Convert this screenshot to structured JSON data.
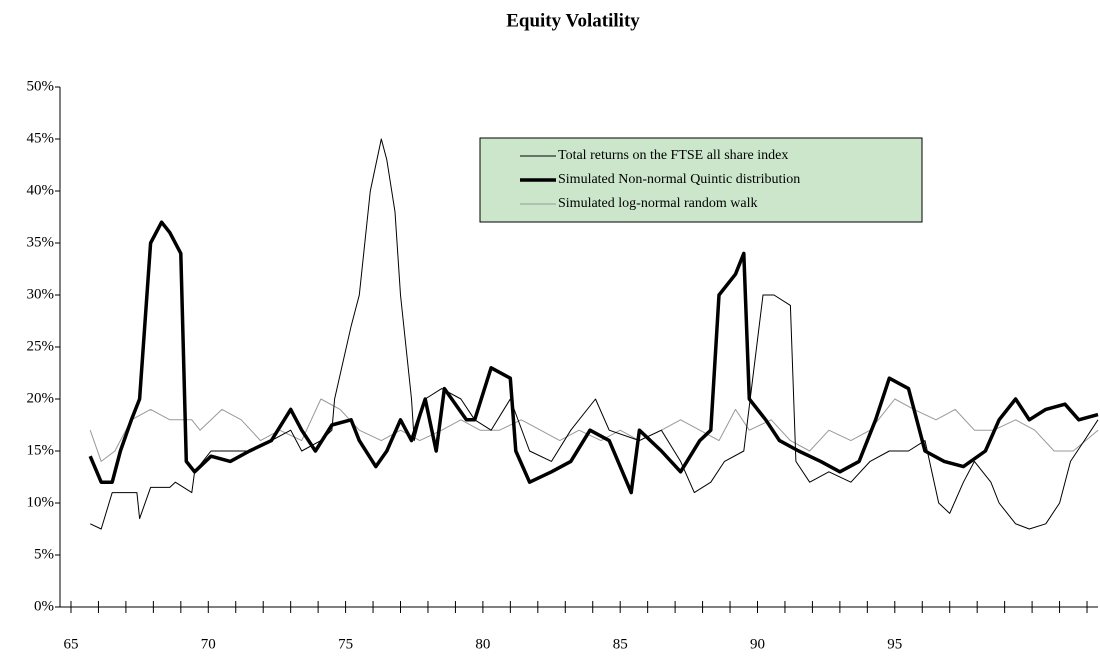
{
  "chart_data": {
    "type": "line",
    "title": "Equity Volatility",
    "xlim": [
      64.6,
      102.4
    ],
    "xticks": [
      65,
      70,
      75,
      80,
      85,
      90,
      95
    ],
    "x_minor_ticks": [
      66,
      67,
      68,
      69,
      71,
      72,
      73,
      74,
      76,
      77,
      78,
      79,
      81,
      82,
      83,
      84,
      86,
      87,
      88,
      89,
      91,
      92,
      93,
      94,
      96,
      97,
      98,
      99,
      100,
      101,
      102
    ],
    "ylim": [
      0,
      50
    ],
    "yticks": [
      {
        "value": 0,
        "label": "0%"
      },
      {
        "value": 5,
        "label": "5%"
      },
      {
        "value": 10,
        "label": "10%"
      },
      {
        "value": 15,
        "label": "15%"
      },
      {
        "value": 20,
        "label": "20%"
      },
      {
        "value": 25,
        "label": "25%"
      },
      {
        "value": 30,
        "label": "30%"
      },
      {
        "value": 35,
        "label": "35%"
      },
      {
        "value": 40,
        "label": "40%"
      },
      {
        "value": 45,
        "label": "45%"
      },
      {
        "value": 50,
        "label": "50%"
      }
    ],
    "legend_position": "top-center",
    "series": [
      {
        "name": "Total returns on the FTSE all share index",
        "color": "#000000",
        "width": 1,
        "x": [
          65.7,
          66.1,
          66.5,
          67.4,
          67.5,
          67.9,
          68.6,
          68.8,
          69.4,
          69.5,
          70.1,
          71.5,
          72.3,
          73.0,
          73.4,
          74.1,
          74.5,
          74.6,
          75.2,
          75.5,
          75.9,
          76.3,
          76.5,
          76.8,
          77.0,
          77.4,
          77.5,
          77.9,
          78.5,
          79.2,
          79.7,
          80.3,
          81.0,
          81.7,
          82.5,
          83.2,
          84.1,
          84.6,
          85.7,
          86.5,
          87.2,
          87.7,
          88.3,
          88.8,
          89.5,
          90.2,
          90.6,
          91.2,
          91.4,
          91.9,
          92.6,
          93.4,
          94.1,
          94.8,
          95.5,
          96.1,
          96.6,
          97.0,
          97.5,
          97.9,
          98.5,
          98.8,
          99.4,
          99.9,
          100.5,
          101.0,
          101.4,
          101.9,
          102.4
        ],
        "values": [
          8,
          7.5,
          11,
          11,
          8.5,
          11.5,
          11.5,
          12,
          11,
          13,
          15,
          15,
          16,
          17,
          15,
          16,
          17,
          20,
          27,
          30,
          40,
          45,
          43,
          38,
          30,
          20,
          16,
          20,
          21,
          20,
          18,
          17,
          20,
          15,
          14,
          17,
          20,
          17,
          16,
          17,
          14,
          11,
          12,
          14,
          15,
          30,
          30,
          29,
          14,
          12,
          13,
          12,
          14,
          15,
          15,
          16,
          10,
          9,
          12,
          14,
          12,
          10,
          8,
          7.5,
          8,
          10,
          14,
          16,
          18
        ]
      },
      {
        "name": "Simulated Non-normal Quintic distribution",
        "color": "#000000",
        "width": 3.5,
        "x": [
          65.7,
          66.1,
          66.5,
          66.8,
          67.2,
          67.5,
          67.9,
          68.3,
          68.6,
          69.0,
          69.2,
          69.5,
          70.1,
          70.8,
          71.5,
          72.3,
          73.0,
          73.4,
          73.9,
          74.5,
          75.2,
          75.5,
          76.1,
          76.5,
          77.0,
          77.4,
          77.9,
          78.3,
          78.6,
          79.4,
          79.7,
          80.3,
          81.0,
          81.2,
          81.7,
          82.5,
          83.2,
          83.9,
          84.6,
          85.4,
          85.7,
          86.5,
          87.2,
          87.9,
          88.3,
          88.6,
          89.2,
          89.5,
          89.7,
          90.3,
          90.8,
          91.5,
          92.3,
          93.0,
          93.7,
          94.3,
          94.8,
          95.5,
          96.1,
          96.8,
          97.5,
          98.3,
          98.8,
          99.4,
          99.9,
          100.5,
          101.2,
          101.7,
          102.4
        ],
        "values": [
          14.5,
          12,
          12,
          15,
          18,
          20,
          35,
          37,
          36,
          34,
          14,
          13,
          14.5,
          14,
          15,
          16,
          19,
          17,
          15,
          17.5,
          18,
          16,
          13.5,
          15,
          18,
          16,
          20,
          15,
          21,
          18,
          18,
          23,
          22,
          15,
          12,
          13,
          14,
          17,
          16,
          11,
          17,
          15,
          13,
          16,
          17,
          30,
          32,
          34,
          20,
          18,
          16,
          15,
          14,
          13,
          14,
          18,
          22,
          21,
          15,
          14,
          13.5,
          15,
          18,
          20,
          18,
          19,
          19.5,
          18,
          18.5
        ]
      },
      {
        "name": "Simulated log-normal random walk",
        "color": "#999999",
        "width": 1,
        "x": [
          65.7,
          66.1,
          66.6,
          67.2,
          67.9,
          68.6,
          69.4,
          69.7,
          70.5,
          71.2,
          71.9,
          72.6,
          73.4,
          74.1,
          74.8,
          75.5,
          76.3,
          77.0,
          77.7,
          78.5,
          79.2,
          79.9,
          80.6,
          81.4,
          82.1,
          82.8,
          83.5,
          84.3,
          85.0,
          85.7,
          86.5,
          87.2,
          87.9,
          88.6,
          89.2,
          89.7,
          90.5,
          91.2,
          91.9,
          92.6,
          93.4,
          94.1,
          95.0,
          95.7,
          96.5,
          97.2,
          97.9,
          98.6,
          99.4,
          100.1,
          100.8,
          101.5,
          102.4
        ],
        "values": [
          17,
          14,
          15,
          18,
          19,
          18,
          18,
          17,
          19,
          18,
          16,
          17,
          16,
          20,
          19,
          17,
          16,
          17,
          16,
          17,
          18,
          17,
          17,
          18,
          17,
          16,
          17,
          16,
          17,
          16,
          17,
          18,
          17,
          16,
          19,
          17,
          18,
          16,
          15,
          17,
          16,
          17,
          20,
          19,
          18,
          19,
          17,
          17,
          18,
          17,
          15,
          15,
          17
        ]
      }
    ]
  }
}
